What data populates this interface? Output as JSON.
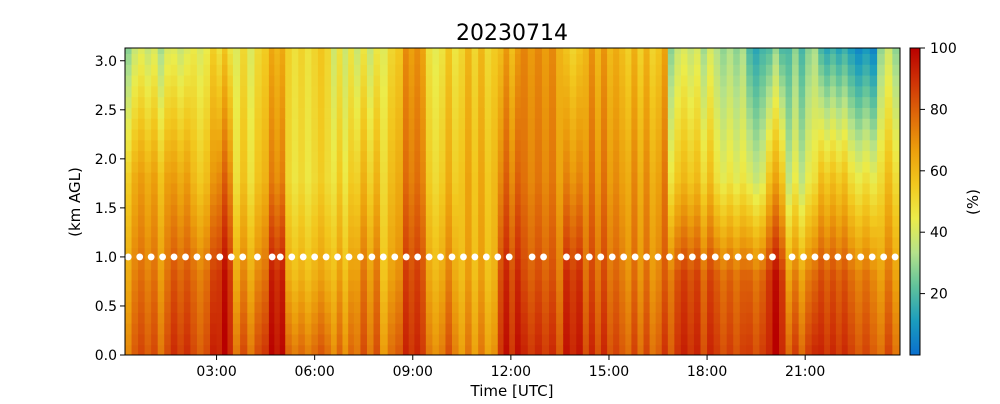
{
  "chart_data": {
    "type": "heatmap",
    "title": "20230714",
    "xlabel": "Time [UTC]",
    "ylabel": "(km AGL)",
    "colorbar_label": "(%)",
    "x_ticks": [
      "03:00",
      "06:00",
      "09:00",
      "12:00",
      "15:00",
      "18:00",
      "21:00"
    ],
    "x_tick_values_hours": [
      3,
      6,
      9,
      12,
      15,
      18,
      21
    ],
    "xlim_hours": [
      0.2,
      23.9
    ],
    "y_ticks": [
      "0.0",
      "0.5",
      "1.0",
      "1.5",
      "2.0",
      "2.5",
      "3.0"
    ],
    "y_tick_values": [
      0.0,
      0.5,
      1.0,
      1.5,
      2.0,
      2.5,
      3.0
    ],
    "ylim": [
      0.0,
      3.13
    ],
    "colorbar_ticks": [
      "20",
      "40",
      "60",
      "80",
      "100"
    ],
    "colorbar_tick_values": [
      20,
      40,
      60,
      80,
      100
    ],
    "clim": [
      0,
      100
    ],
    "colormap": [
      "#0a6fce",
      "#1b9dbd",
      "#5fc29b",
      "#b5e28a",
      "#ecec4a",
      "#f2c81e",
      "#ec9f0c",
      "#df6a09",
      "#cf3306",
      "#b80000"
    ],
    "heights_km": [
      0.05,
      0.16,
      0.27,
      0.38,
      0.49,
      0.6,
      0.71,
      0.82,
      0.93,
      1.04,
      1.15,
      1.26,
      1.37,
      1.48,
      1.59,
      1.7,
      1.81,
      1.92,
      2.03,
      2.14,
      2.25,
      2.36,
      2.47,
      2.58,
      2.69,
      2.8,
      2.91,
      3.02,
      3.13
    ],
    "time_segments": [
      {
        "t": [
          0.2,
          1.6
        ],
        "sfc": 80,
        "low": 72,
        "mid": 62,
        "top": 35
      },
      {
        "t": [
          1.6,
          2.2
        ],
        "sfc": 88,
        "low": 80,
        "mid": 65,
        "top": 38
      },
      {
        "t": [
          2.2,
          3.0
        ],
        "sfc": 85,
        "low": 78,
        "mid": 60,
        "top": 45
      },
      {
        "t": [
          3.0,
          3.5
        ],
        "sfc": 95,
        "low": 92,
        "mid": 75,
        "top": 50
      },
      {
        "t": [
          3.5,
          4.6
        ],
        "sfc": 82,
        "low": 70,
        "mid": 55,
        "top": 48
      },
      {
        "t": [
          4.6,
          5.1
        ],
        "sfc": 95,
        "low": 90,
        "mid": 70,
        "top": 60
      },
      {
        "t": [
          5.1,
          6.5
        ],
        "sfc": 78,
        "low": 62,
        "mid": 50,
        "top": 52
      },
      {
        "t": [
          6.5,
          7.2
        ],
        "sfc": 72,
        "low": 60,
        "mid": 48,
        "top": 40
      },
      {
        "t": [
          7.2,
          8.0
        ],
        "sfc": 80,
        "low": 72,
        "mid": 58,
        "top": 42
      },
      {
        "t": [
          8.0,
          8.7
        ],
        "sfc": 76,
        "low": 65,
        "mid": 58,
        "top": 50
      },
      {
        "t": [
          8.7,
          9.4
        ],
        "sfc": 90,
        "low": 85,
        "mid": 75,
        "top": 68
      },
      {
        "t": [
          9.4,
          10.4
        ],
        "sfc": 75,
        "low": 65,
        "mid": 55,
        "top": 48
      },
      {
        "t": [
          10.4,
          11.6
        ],
        "sfc": 70,
        "low": 62,
        "mid": 60,
        "top": 55
      },
      {
        "t": [
          11.6,
          12.3
        ],
        "sfc": 95,
        "low": 90,
        "mid": 78,
        "top": 65
      },
      {
        "t": [
          12.3,
          13.6
        ],
        "sfc": 88,
        "low": 80,
        "mid": 72,
        "top": 68
      },
      {
        "t": [
          13.6,
          14.2
        ],
        "sfc": 95,
        "low": 90,
        "mid": 72,
        "top": 55
      },
      {
        "t": [
          14.2,
          15.5
        ],
        "sfc": 85,
        "low": 78,
        "mid": 70,
        "top": 62
      },
      {
        "t": [
          15.5,
          16.8
        ],
        "sfc": 82,
        "low": 74,
        "mid": 68,
        "top": 58
      },
      {
        "t": [
          16.8,
          18.2
        ],
        "sfc": 88,
        "low": 82,
        "mid": 55,
        "top": 35
      },
      {
        "t": [
          18.2,
          19.2
        ],
        "sfc": 85,
        "low": 78,
        "mid": 45,
        "top": 30
      },
      {
        "t": [
          19.2,
          19.8
        ],
        "sfc": 88,
        "low": 80,
        "mid": 42,
        "top": 18
      },
      {
        "t": [
          19.8,
          20.4
        ],
        "sfc": 95,
        "low": 92,
        "mid": 60,
        "top": 22
      },
      {
        "t": [
          20.4,
          21.4
        ],
        "sfc": 85,
        "low": 72,
        "mid": 42,
        "top": 25
      },
      {
        "t": [
          21.4,
          22.3
        ],
        "sfc": 88,
        "low": 80,
        "mid": 55,
        "top": 12
      },
      {
        "t": [
          22.3,
          23.2
        ],
        "sfc": 85,
        "low": 76,
        "mid": 48,
        "top": 8
      },
      {
        "t": [
          23.2,
          23.9
        ],
        "sfc": 78,
        "low": 68,
        "mid": 52,
        "top": 30
      }
    ],
    "marker_series": {
      "height_km": 1.0,
      "color": "#ffffff",
      "times_hours": [
        0.3,
        0.65,
        1.0,
        1.35,
        1.7,
        2.05,
        2.4,
        2.75,
        3.1,
        3.45,
        3.8,
        4.25,
        4.7,
        4.95,
        5.3,
        5.65,
        6.0,
        6.35,
        6.7,
        7.05,
        7.4,
        7.75,
        8.1,
        8.45,
        8.8,
        9.15,
        9.5,
        9.85,
        10.2,
        10.55,
        10.9,
        11.25,
        11.6,
        11.95,
        12.65,
        13.0,
        13.7,
        14.05,
        14.4,
        14.75,
        15.1,
        15.45,
        15.8,
        16.15,
        16.5,
        16.85,
        17.2,
        17.55,
        17.9,
        18.25,
        18.6,
        18.95,
        19.3,
        19.65,
        20.0,
        20.6,
        20.95,
        21.3,
        21.65,
        22.0,
        22.35,
        22.7,
        23.05,
        23.4,
        23.75
      ]
    }
  }
}
